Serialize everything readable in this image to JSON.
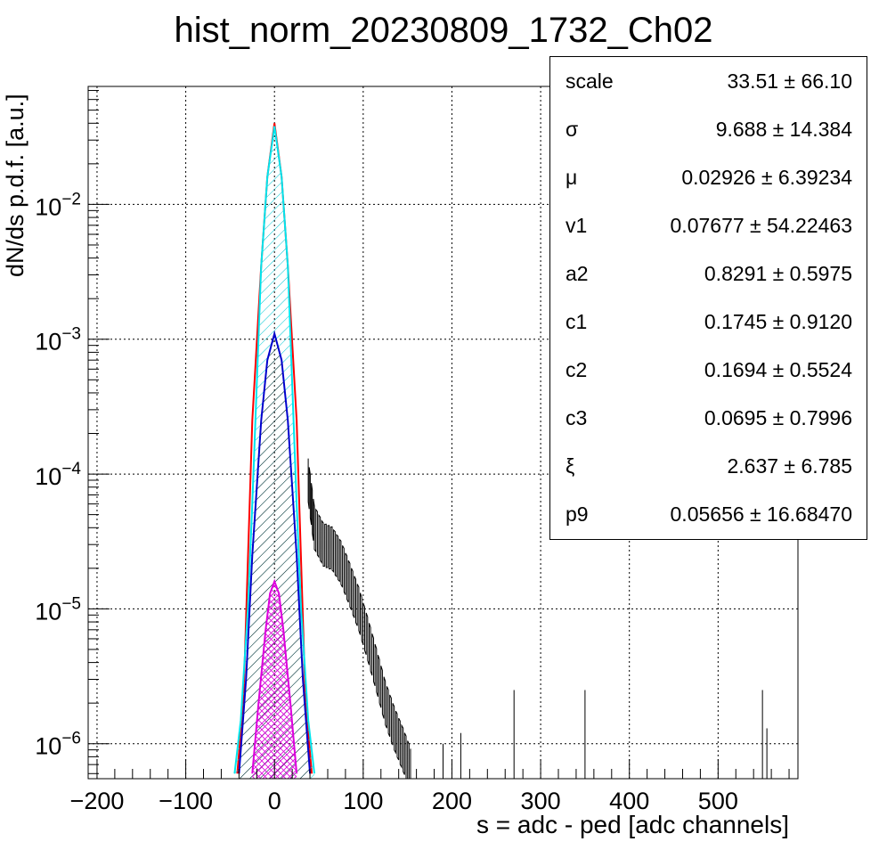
{
  "chart_data": {
    "type": "histogram",
    "title": "hist_norm_20230809_1732_Ch02",
    "xlabel": "s = adc - ped [adc channels]",
    "ylabel": "dN/ds p.d.f. [a.u.]",
    "xlim": [
      -210,
      590
    ],
    "ylim": [
      5.5e-07,
      0.075
    ],
    "yscale": "log",
    "grid": true,
    "x_ticks": [
      -200,
      -100,
      0,
      100,
      200,
      300,
      400,
      500
    ],
    "x_tick_labels": [
      "−200",
      "−100",
      "0",
      "100",
      "200",
      "300",
      "400",
      "500"
    ],
    "y_ticks": [
      1e-06,
      1e-05,
      0.0001,
      0.001,
      0.01
    ],
    "y_tick_labels": [
      {
        "base": "10",
        "exp": "−6"
      },
      {
        "base": "10",
        "exp": "−5"
      },
      {
        "base": "10",
        "exp": "−4"
      },
      {
        "base": "10",
        "exp": "−3"
      },
      {
        "base": "10",
        "exp": "−2"
      }
    ],
    "series": [
      {
        "role": "fit-total",
        "color": "#ff0000",
        "points": [
          [
            -42,
            6e-07
          ],
          [
            -35,
            2e-06
          ],
          [
            -25,
            0.00025
          ],
          [
            -15,
            0.0035
          ],
          [
            -8,
            0.016
          ],
          [
            0,
            0.04
          ],
          [
            8,
            0.016
          ],
          [
            15,
            0.0035
          ],
          [
            25,
            0.00025
          ],
          [
            35,
            2e-06
          ],
          [
            42,
            6e-07
          ]
        ]
      },
      {
        "role": "component-1",
        "color": "#00e5ee",
        "fill": "hatched",
        "points": [
          [
            -45,
            6e-07
          ],
          [
            -38,
            1.5e-06
          ],
          [
            -30,
            1e-05
          ],
          [
            -25,
            6e-05
          ],
          [
            -15,
            0.0035
          ],
          [
            -8,
            0.016
          ],
          [
            0,
            0.038
          ],
          [
            8,
            0.016
          ],
          [
            15,
            0.0035
          ],
          [
            25,
            6e-05
          ],
          [
            30,
            1e-05
          ],
          [
            38,
            1.5e-06
          ],
          [
            45,
            6e-07
          ]
        ]
      },
      {
        "role": "component-2",
        "color": "#0000cc",
        "fill": "hatched",
        "points": [
          [
            -40,
            6e-07
          ],
          [
            -32,
            3e-06
          ],
          [
            -25,
            2.5e-05
          ],
          [
            -15,
            0.00025
          ],
          [
            -8,
            0.0007
          ],
          [
            0,
            0.0011
          ],
          [
            8,
            0.0007
          ],
          [
            15,
            0.00025
          ],
          [
            25,
            2.5e-05
          ],
          [
            32,
            3e-06
          ],
          [
            40,
            6e-07
          ]
        ]
      },
      {
        "role": "component-3",
        "color": "#dd00dd",
        "fill": "cross-hatched",
        "points": [
          [
            -25,
            6e-07
          ],
          [
            -18,
            2e-06
          ],
          [
            -10,
            7e-06
          ],
          [
            -5,
            1.3e-05
          ],
          [
            0,
            1.6e-05
          ],
          [
            5,
            1.3e-05
          ],
          [
            10,
            7e-06
          ],
          [
            18,
            2e-06
          ],
          [
            25,
            6e-07
          ]
        ]
      },
      {
        "role": "data-tail",
        "color": "#000000",
        "points": [
          [
            38,
            9e-05
          ],
          [
            45,
            4e-05
          ],
          [
            55,
            3e-05
          ],
          [
            65,
            2.8e-05
          ],
          [
            75,
            2.2e-05
          ],
          [
            85,
            1.5e-05
          ],
          [
            95,
            1e-05
          ],
          [
            105,
            6e-06
          ],
          [
            115,
            3.5e-06
          ],
          [
            125,
            2e-06
          ],
          [
            135,
            1.3e-06
          ],
          [
            145,
            9e-07
          ],
          [
            155,
            6e-07
          ]
        ]
      }
    ],
    "isolated_bins": [
      {
        "x": 190,
        "y": 1e-06
      },
      {
        "x": 210,
        "y": 1.2e-06
      },
      {
        "x": 270,
        "y": 2.5e-06
      },
      {
        "x": 350,
        "y": 2.5e-06
      },
      {
        "x": 550,
        "y": 2.5e-06
      },
      {
        "x": 555,
        "y": 1.3e-06
      }
    ],
    "stats": [
      {
        "name": "scale",
        "value": "33.51 ± 66.10"
      },
      {
        "name": "σ",
        "value": "9.688 ± 14.384"
      },
      {
        "name": "μ",
        "value": "0.02926 ± 6.39234"
      },
      {
        "name": "v1",
        "value": "0.07677 ± 54.22463"
      },
      {
        "name": "a2",
        "value": "0.8291 ± 0.5975"
      },
      {
        "name": "c1",
        "value": "0.1745 ± 0.9120"
      },
      {
        "name": "c2",
        "value": "0.1694 ± 0.5524"
      },
      {
        "name": "c3",
        "value": "0.0695 ± 0.7996"
      },
      {
        "name": "ξ",
        "value": "2.637 ± 6.785"
      },
      {
        "name": "p9",
        "value": "0.05656 ± 16.68470"
      }
    ]
  }
}
